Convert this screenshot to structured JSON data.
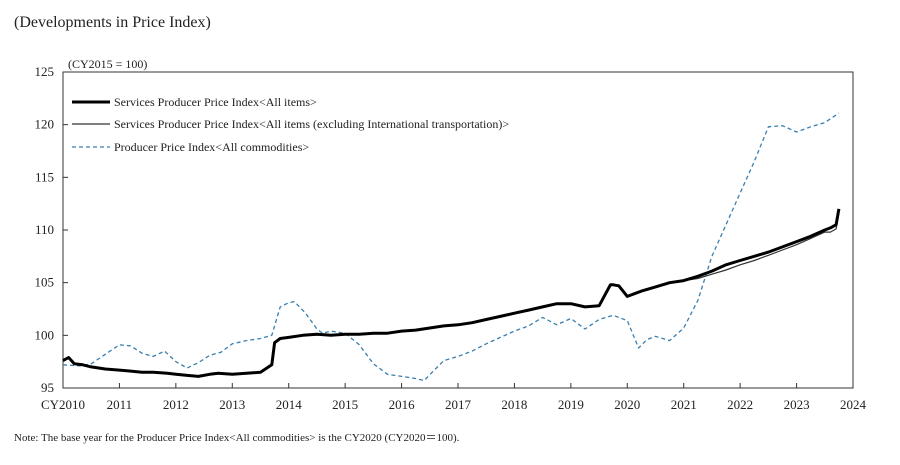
{
  "heading": "(Developments in Price Index)",
  "note": "Note: The base year for the Producer Price Index<All commodities> is the CY2020 (CY2020＝100).",
  "chart_data": {
    "type": "line",
    "title": "(Developments in Price Index)",
    "unit_label": "(CY2015 = 100)",
    "xlabel": "",
    "ylabel": "",
    "xlim": [
      2010.0,
      2024.0
    ],
    "ylim": [
      95,
      125
    ],
    "yticks": [
      95,
      100,
      105,
      110,
      115,
      120,
      125
    ],
    "xticks": [
      2010,
      2011,
      2012,
      2013,
      2014,
      2015,
      2016,
      2017,
      2018,
      2019,
      2020,
      2021,
      2022,
      2023,
      2024
    ],
    "xtick_labels": [
      "CY2010",
      "2011",
      "2012",
      "2013",
      "2014",
      "2015",
      "2016",
      "2017",
      "2018",
      "2019",
      "2020",
      "2021",
      "2022",
      "2023",
      "2024"
    ],
    "grid": false,
    "legend_position": "top-left",
    "series": [
      {
        "name": "Services Producer Price Index<All items>",
        "color": "#000000",
        "style": "thick-solid",
        "x": [
          2010.0,
          2010.1,
          2010.2,
          2010.35,
          2010.5,
          2010.75,
          2011.0,
          2011.2,
          2011.4,
          2011.6,
          2011.85,
          2012.0,
          2012.2,
          2012.4,
          2012.6,
          2012.75,
          2013.0,
          2013.25,
          2013.5,
          2013.7,
          2013.75,
          2013.85,
          2014.0,
          2014.25,
          2014.5,
          2014.75,
          2015.0,
          2015.25,
          2015.5,
          2015.75,
          2016.0,
          2016.25,
          2016.5,
          2016.75,
          2017.0,
          2017.25,
          2017.5,
          2017.75,
          2018.0,
          2018.25,
          2018.5,
          2018.75,
          2019.0,
          2019.25,
          2019.5,
          2019.7,
          2019.75,
          2019.85,
          2020.0,
          2020.25,
          2020.5,
          2020.75,
          2021.0,
          2021.25,
          2021.5,
          2021.75,
          2022.0,
          2022.25,
          2022.5,
          2022.75,
          2023.0,
          2023.25,
          2023.5,
          2023.6,
          2023.7,
          2023.75
        ],
        "y": [
          97.6,
          97.9,
          97.3,
          97.2,
          97.0,
          96.8,
          96.7,
          96.6,
          96.5,
          96.5,
          96.4,
          96.3,
          96.2,
          96.1,
          96.3,
          96.4,
          96.3,
          96.4,
          96.5,
          97.2,
          99.3,
          99.7,
          99.8,
          100.0,
          100.1,
          100.0,
          100.1,
          100.1,
          100.2,
          100.2,
          100.4,
          100.5,
          100.7,
          100.9,
          101.0,
          101.2,
          101.5,
          101.8,
          102.1,
          102.4,
          102.7,
          103.0,
          103.0,
          102.7,
          102.8,
          104.8,
          104.8,
          104.7,
          103.7,
          104.2,
          104.6,
          105.0,
          105.2,
          105.6,
          106.1,
          106.7,
          107.1,
          107.5,
          107.9,
          108.4,
          108.9,
          109.4,
          110.0,
          110.2,
          110.5,
          112.0
        ]
      },
      {
        "name": "Services Producer Price Index<All items (excluding International transportation)>",
        "color": "#333333",
        "style": "thin-solid",
        "x": [
          2010.0,
          2010.1,
          2010.2,
          2010.35,
          2010.5,
          2010.75,
          2011.0,
          2011.2,
          2011.4,
          2011.6,
          2011.85,
          2012.0,
          2012.2,
          2012.4,
          2012.6,
          2012.75,
          2013.0,
          2013.25,
          2013.5,
          2013.7,
          2013.75,
          2013.85,
          2014.0,
          2014.25,
          2014.5,
          2014.75,
          2015.0,
          2015.25,
          2015.5,
          2015.75,
          2016.0,
          2016.25,
          2016.5,
          2016.75,
          2017.0,
          2017.25,
          2017.5,
          2017.75,
          2018.0,
          2018.25,
          2018.5,
          2018.75,
          2019.0,
          2019.25,
          2019.5,
          2019.7,
          2019.75,
          2019.85,
          2020.0,
          2020.25,
          2020.5,
          2020.75,
          2021.0,
          2021.25,
          2021.5,
          2021.75,
          2022.0,
          2022.25,
          2022.5,
          2022.75,
          2023.0,
          2023.25,
          2023.5,
          2023.6,
          2023.7,
          2023.75
        ],
        "y": [
          97.6,
          97.9,
          97.3,
          97.2,
          97.0,
          96.8,
          96.7,
          96.6,
          96.5,
          96.5,
          96.4,
          96.3,
          96.2,
          96.1,
          96.3,
          96.4,
          96.3,
          96.4,
          96.5,
          97.2,
          99.3,
          99.7,
          99.8,
          100.0,
          100.1,
          100.0,
          100.1,
          100.1,
          100.2,
          100.2,
          100.4,
          100.5,
          100.7,
          100.9,
          101.0,
          101.2,
          101.5,
          101.8,
          102.1,
          102.4,
          102.7,
          103.0,
          103.0,
          102.7,
          102.8,
          104.8,
          104.8,
          104.7,
          103.7,
          104.2,
          104.6,
          105.0,
          105.2,
          105.4,
          105.8,
          106.2,
          106.7,
          107.1,
          107.6,
          108.1,
          108.6,
          109.2,
          109.8,
          109.8,
          110.1,
          111.6
        ]
      },
      {
        "name": "Producer Price Index<All commodities>",
        "color": "#3a7fb0",
        "style": "dashed",
        "x": [
          2010.0,
          2010.3,
          2010.5,
          2010.75,
          2011.0,
          2011.2,
          2011.4,
          2011.6,
          2011.8,
          2012.0,
          2012.2,
          2012.4,
          2012.6,
          2012.8,
          2013.0,
          2013.25,
          2013.5,
          2013.7,
          2013.85,
          2014.0,
          2014.1,
          2014.3,
          2014.5,
          2014.6,
          2014.75,
          2015.0,
          2015.25,
          2015.5,
          2015.75,
          2016.0,
          2016.25,
          2016.4,
          2016.6,
          2016.75,
          2017.0,
          2017.25,
          2017.5,
          2017.75,
          2018.0,
          2018.25,
          2018.5,
          2018.75,
          2019.0,
          2019.25,
          2019.5,
          2019.75,
          2020.0,
          2020.2,
          2020.35,
          2020.5,
          2020.75,
          2021.0,
          2021.25,
          2021.5,
          2021.75,
          2022.0,
          2022.25,
          2022.5,
          2022.75,
          2023.0,
          2023.25,
          2023.5,
          2023.75
        ],
        "y": [
          97.2,
          97.1,
          97.3,
          98.2,
          99.1,
          99.0,
          98.3,
          98.0,
          98.5,
          97.5,
          96.9,
          97.4,
          98.1,
          98.4,
          99.2,
          99.5,
          99.7,
          100.0,
          102.7,
          103.1,
          103.2,
          102.1,
          100.6,
          100.2,
          100.4,
          100.2,
          99.1,
          97.3,
          96.3,
          96.1,
          95.9,
          95.7,
          96.8,
          97.6,
          98.0,
          98.5,
          99.2,
          99.8,
          100.4,
          100.9,
          101.7,
          101.0,
          101.6,
          100.6,
          101.5,
          101.9,
          101.4,
          98.8,
          99.6,
          99.9,
          99.5,
          100.7,
          103.3,
          107.5,
          110.5,
          113.5,
          116.5,
          119.8,
          119.9,
          119.3,
          119.8,
          120.2,
          121.1
        ]
      }
    ]
  }
}
